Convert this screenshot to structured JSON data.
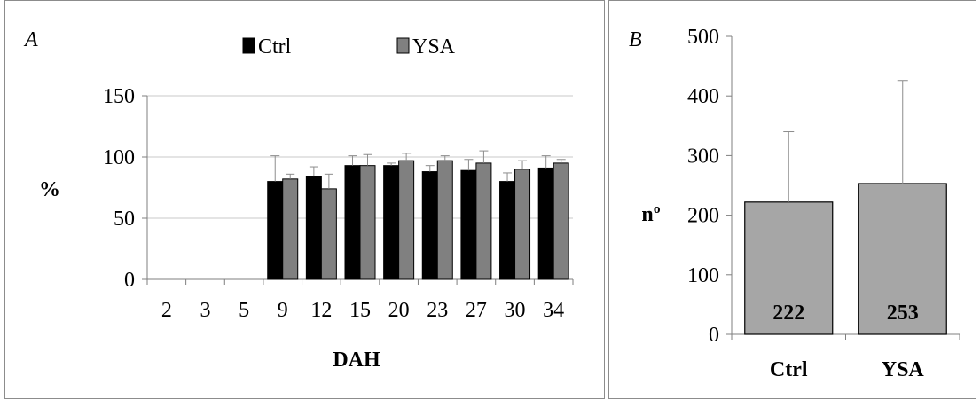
{
  "chart_data": [
    {
      "type": "bar",
      "panel_label": "A",
      "xlabel": "DAH",
      "ylabel": "%",
      "categories": [
        "2",
        "3",
        "5",
        "9",
        "12",
        "15",
        "20",
        "23",
        "27",
        "30",
        "34"
      ],
      "series": [
        {
          "name": "Ctrl",
          "color": "#000000",
          "values": [
            null,
            null,
            null,
            80,
            84,
            93,
            93,
            88,
            89,
            80,
            91
          ],
          "errors": [
            null,
            null,
            null,
            21,
            8,
            8,
            2,
            5,
            9,
            7,
            10
          ]
        },
        {
          "name": "YSA",
          "color": "#808080",
          "values": [
            null,
            null,
            null,
            82,
            74,
            93,
            97,
            97,
            95,
            90,
            95
          ],
          "errors": [
            null,
            null,
            null,
            4,
            12,
            9,
            6,
            4,
            10,
            7,
            3
          ]
        }
      ],
      "ylim": [
        0,
        150
      ],
      "yticks": [
        0,
        50,
        100,
        150
      ],
      "grid": true,
      "legend": "top-center"
    },
    {
      "type": "bar",
      "panel_label": "B",
      "xlabel": "",
      "ylabel": "nº",
      "categories": [
        "Ctrl",
        "YSA"
      ],
      "values": [
        222,
        253
      ],
      "data_labels": [
        "222",
        "253"
      ],
      "errors": [
        118,
        173
      ],
      "color": "#a6a6a6",
      "ylim": [
        0,
        500
      ],
      "yticks": [
        0,
        100,
        200,
        300,
        400,
        500
      ],
      "grid": false
    }
  ]
}
